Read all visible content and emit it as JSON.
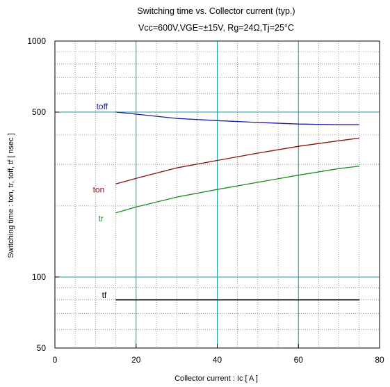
{
  "chart_data": {
    "type": "line",
    "title": "Switching time  vs.  Collector current  (typ.)",
    "subtitle": "Vcc=600V,VGE=±15V, Rg=24Ω,Tj=25°C",
    "xlabel": "Collector current  :  Ic  [ A ]",
    "ylabel": "Switching time  :  ton, tr, toff, tf  [ nsec ]",
    "xlim": [
      0,
      80
    ],
    "ylim": [
      50,
      1000
    ],
    "y_scale": "log",
    "grid": true,
    "x_ticks": [
      "0",
      "20",
      "40",
      "60",
      "80"
    ],
    "y_ticks": [
      "50",
      "100",
      "500",
      "1000"
    ],
    "x_tick_values": [
      0,
      20,
      40,
      60,
      80
    ],
    "y_tick_values": [
      50,
      100,
      500,
      1000
    ],
    "series": [
      {
        "name": "toff",
        "color": "#1a1aa0",
        "x": [
          15,
          20,
          30,
          40,
          50,
          60,
          70,
          75
        ],
        "y": [
          500,
          490,
          470,
          460,
          452,
          445,
          442,
          442
        ]
      },
      {
        "name": "ton",
        "color": "#8b0f0f",
        "x": [
          15,
          20,
          30,
          40,
          50,
          60,
          70,
          75
        ],
        "y": [
          248,
          262,
          290,
          312,
          335,
          358,
          378,
          388
        ]
      },
      {
        "name": "tr",
        "color": "#1e8c1e",
        "x": [
          15,
          20,
          30,
          40,
          50,
          60,
          70,
          75
        ],
        "y": [
          187,
          198,
          218,
          235,
          252,
          270,
          288,
          295
        ]
      },
      {
        "name": "tf",
        "color": "#000000",
        "x": [
          15,
          20,
          30,
          40,
          50,
          60,
          70,
          75
        ],
        "y": [
          80,
          80,
          80,
          80,
          80,
          80,
          80,
          80
        ]
      }
    ]
  }
}
